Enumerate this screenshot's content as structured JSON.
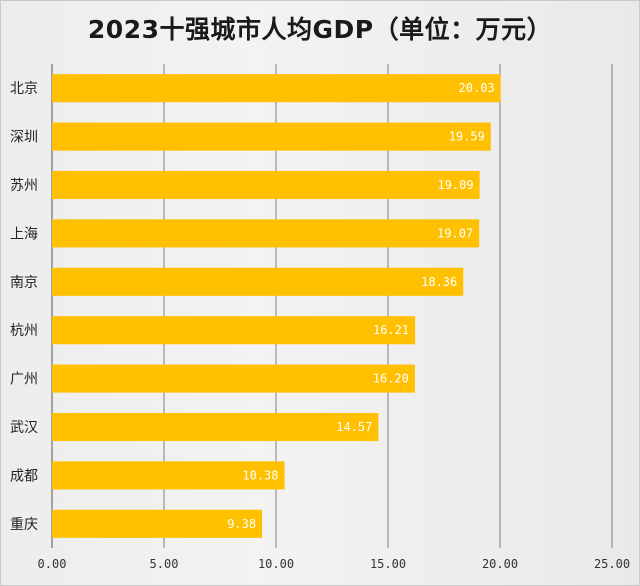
{
  "chart_data": {
    "type": "bar",
    "orientation": "horizontal",
    "title": "2023十强城市人均GDP（单位：万元）",
    "categories": [
      "北京",
      "深圳",
      "苏州",
      "上海",
      "南京",
      "杭州",
      "广州",
      "武汉",
      "成都",
      "重庆"
    ],
    "values": [
      20.03,
      19.59,
      19.09,
      19.07,
      18.36,
      16.21,
      16.2,
      14.57,
      10.38,
      9.38
    ],
    "value_labels": [
      "20.03",
      "19.59",
      "19.09",
      "19.07",
      "18.36",
      "16.21",
      "16.20",
      "14.57",
      "10.38",
      "9.38"
    ],
    "xlim": [
      0,
      25
    ],
    "x_ticks": [
      "0.00",
      "5.00",
      "10.00",
      "15.00",
      "20.00",
      "25.00"
    ],
    "x_tick_values": [
      0,
      5,
      10,
      15,
      20,
      25
    ],
    "grid": true,
    "bar_color": "#FFC000",
    "grid_color": "#7f7f7f"
  }
}
